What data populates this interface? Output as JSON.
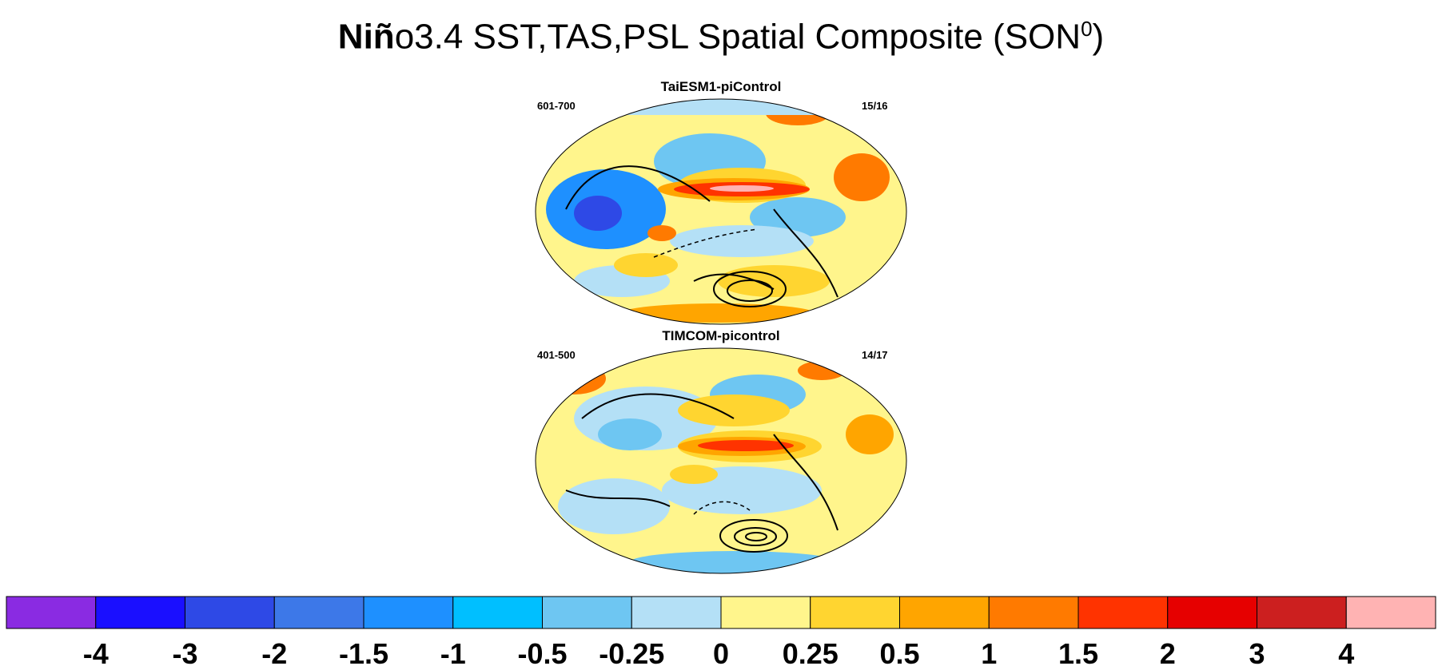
{
  "title": {
    "bold": "Niñ",
    "rest": "o3.4 SST,TAS,PSL Spatial Composite (SON",
    "sup": "0",
    "close": ")"
  },
  "panels": [
    {
      "name": "TaiESM1-piControl",
      "years": "601-700",
      "count": "15/16"
    },
    {
      "name": "TIMCOM-picontrol",
      "years": "401-500",
      "count": "14/17"
    }
  ],
  "colorbar": {
    "colors": [
      "#8a2be2",
      "#1a0fff",
      "#2e49e6",
      "#3d78e8",
      "#1e90ff",
      "#00bfff",
      "#6ec6f2",
      "#b4e0f6",
      "#fff58c",
      "#ffd530",
      "#ffa500",
      "#ff7a00",
      "#ff3300",
      "#e60000",
      "#cc1f1f",
      "#ffb3b3"
    ],
    "labels": [
      "-4",
      "-3",
      "-2",
      "-1.5",
      "-1",
      "-0.5",
      "-0.25",
      "0",
      "0.25",
      "0.5",
      "1",
      "1.5",
      "2",
      "3",
      "4"
    ]
  }
}
